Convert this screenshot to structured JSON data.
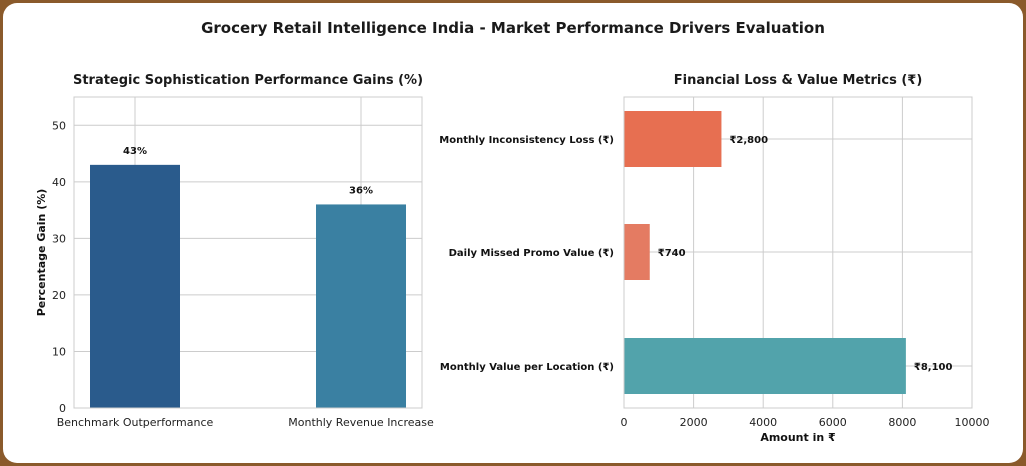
{
  "page_title": "Grocery Retail Intelligence India - Market Performance Drivers Evaluation",
  "chart_data": [
    {
      "type": "bar",
      "title": "Strategic Sophistication Performance Gains (%)",
      "xlabel": "",
      "ylabel": "Percentage Gain (%)",
      "categories": [
        "Benchmark Outperformance",
        "Monthly Revenue Increase"
      ],
      "values": [
        43,
        36
      ],
      "data_labels": [
        "43%",
        "36%"
      ],
      "ylim": [
        0,
        55
      ],
      "yticks": [
        0,
        10,
        20,
        30,
        40,
        50
      ],
      "colors": [
        "#2a5b8c",
        "#3a80a2"
      ],
      "grid": true
    },
    {
      "type": "bar",
      "orientation": "horizontal",
      "title": "Financial Loss & Value Metrics (₹)",
      "xlabel": "Amount in ₹",
      "ylabel": "",
      "categories": [
        "Monthly Inconsistency Loss (₹)",
        "Daily Missed Promo Value (₹)",
        "Monthly Value per Location (₹)"
      ],
      "values": [
        2800,
        740,
        8100
      ],
      "data_labels": [
        "₹2,800",
        "₹740",
        "₹8,100"
      ],
      "xlim": [
        0,
        10000
      ],
      "xticks": [
        0,
        2000,
        4000,
        6000,
        8000,
        10000
      ],
      "colors": [
        "#e76f51",
        "#e47b62",
        "#52a3ab"
      ],
      "grid": true
    }
  ]
}
